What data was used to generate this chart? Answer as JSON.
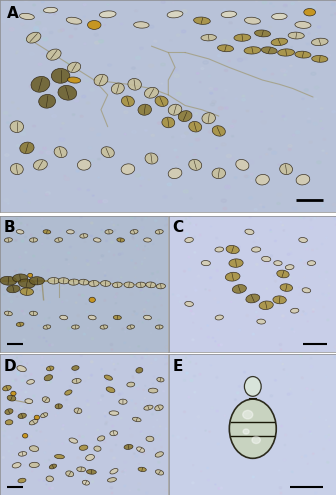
{
  "bg_A": "#b8c2d8",
  "bg_B": "#b0bcd0",
  "bg_C": "#c8cee8",
  "bg_D": "#c0c8e0",
  "bg_E": "#c8d0e8",
  "cell_colors": {
    "dark_olive": "#6b5e28",
    "olive": "#8a7832",
    "tan": "#a8903a",
    "light_tan": "#c0a848",
    "pale": "#c8c09a",
    "very_pale": "#d5cdb0",
    "clear": "#ddd8c0",
    "golden": "#c8900a",
    "dark_brown": "#4a3a10"
  },
  "label_fontsize": 11,
  "label_color": "black",
  "label_fontweight": "bold",
  "figure_bg": "white",
  "border_color": "#888888",
  "scale_bar_color": "black"
}
